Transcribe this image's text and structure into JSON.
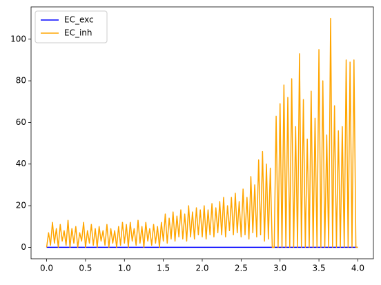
{
  "chart_data": {
    "type": "line",
    "x": [
      0,
      0.025,
      0.05,
      0.075,
      0.1,
      0.125,
      0.15,
      0.175,
      0.2,
      0.225,
      0.25,
      0.275,
      0.3,
      0.325,
      0.35,
      0.375,
      0.4,
      0.425,
      0.45,
      0.475,
      0.5,
      0.525,
      0.55,
      0.575,
      0.6,
      0.625,
      0.65,
      0.675,
      0.7,
      0.725,
      0.75,
      0.775,
      0.8,
      0.825,
      0.85,
      0.875,
      0.9,
      0.925,
      0.95,
      0.975,
      1,
      1.025,
      1.05,
      1.075,
      1.1,
      1.125,
      1.15,
      1.175,
      1.2,
      1.225,
      1.25,
      1.275,
      1.3,
      1.325,
      1.35,
      1.375,
      1.4,
      1.425,
      1.45,
      1.475,
      1.5,
      1.525,
      1.55,
      1.575,
      1.6,
      1.625,
      1.65,
      1.675,
      1.7,
      1.725,
      1.75,
      1.775,
      1.8,
      1.825,
      1.85,
      1.875,
      1.9,
      1.925,
      1.95,
      1.975,
      2,
      2.025,
      2.05,
      2.075,
      2.1,
      2.125,
      2.15,
      2.175,
      2.2,
      2.225,
      2.25,
      2.275,
      2.3,
      2.325,
      2.35,
      2.375,
      2.4,
      2.425,
      2.45,
      2.475,
      2.5,
      2.525,
      2.55,
      2.575,
      2.6,
      2.625,
      2.65,
      2.675,
      2.7,
      2.725,
      2.75,
      2.775,
      2.8,
      2.825,
      2.85,
      2.875,
      2.9,
      2.925,
      2.95,
      2.975,
      3,
      3.025,
      3.05,
      3.075,
      3.1,
      3.125,
      3.15,
      3.175,
      3.2,
      3.225,
      3.25,
      3.275,
      3.3,
      3.325,
      3.35,
      3.375,
      3.4,
      3.425,
      3.45,
      3.475,
      3.5,
      3.525,
      3.55,
      3.575,
      3.6,
      3.625,
      3.65,
      3.675,
      3.7,
      3.725,
      3.75,
      3.775,
      3.8,
      3.825,
      3.85,
      3.875,
      3.9,
      3.925,
      3.95,
      3.975,
      4
    ],
    "series": [
      {
        "name": "EC_exc",
        "color": "#0000ff",
        "values": [
          0,
          0,
          0,
          0,
          0,
          0,
          0,
          0,
          0,
          0,
          0,
          0,
          0,
          0,
          0,
          0,
          0,
          0,
          0,
          0,
          0,
          0,
          0,
          0,
          0,
          0,
          0,
          0,
          0,
          0,
          0,
          0,
          0,
          0,
          0,
          0,
          0,
          0,
          0,
          0,
          0,
          0,
          0,
          0,
          0,
          0,
          0,
          0,
          0,
          0,
          0,
          0,
          0,
          0,
          0,
          0,
          0,
          0,
          0,
          0,
          0,
          0,
          0,
          0,
          0,
          0,
          0,
          0,
          0,
          0,
          0,
          0,
          0,
          0,
          0,
          0,
          0,
          0,
          0,
          0,
          0,
          0,
          0,
          0,
          0,
          0,
          0,
          0,
          0,
          0,
          0,
          0,
          0,
          0,
          0,
          0,
          0,
          0,
          0,
          0,
          0,
          0,
          0,
          0,
          0,
          0,
          0,
          0,
          0,
          0,
          0,
          0,
          0,
          0,
          0,
          0,
          0,
          0,
          0,
          0,
          0,
          0,
          0,
          0,
          0,
          0,
          0,
          0,
          0,
          0,
          0,
          0,
          0,
          0,
          0,
          0,
          0,
          0,
          0,
          0,
          0,
          0,
          0,
          0,
          0,
          0,
          0,
          0,
          0,
          0,
          0,
          0,
          0,
          0,
          0,
          0,
          0,
          0,
          0,
          0,
          0
        ]
      },
      {
        "name": "EC_inh",
        "color": "#ffa500",
        "values": [
          0,
          7,
          1,
          12,
          2,
          9,
          0,
          11,
          3,
          8,
          1,
          13,
          0,
          9,
          2,
          10,
          0,
          7,
          3,
          12,
          0,
          8,
          2,
          11,
          1,
          9,
          0,
          10,
          3,
          8,
          1,
          11,
          0,
          9,
          2,
          8,
          0,
          10,
          1,
          12,
          2,
          11,
          0,
          12,
          3,
          9,
          1,
          13,
          2,
          10,
          0,
          12,
          3,
          9,
          1,
          11,
          2,
          10,
          0,
          12,
          3,
          16,
          2,
          14,
          4,
          17,
          3,
          15,
          5,
          18,
          4,
          16,
          3,
          20,
          5,
          17,
          4,
          19,
          6,
          18,
          5,
          20,
          4,
          18,
          6,
          21,
          5,
          19,
          7,
          22,
          6,
          24,
          5,
          20,
          8,
          24,
          6,
          26,
          7,
          22,
          5,
          28,
          6,
          24,
          4,
          34,
          7,
          30,
          5,
          42,
          6,
          46,
          3,
          40,
          4,
          38,
          0,
          0,
          63,
          0,
          69,
          0,
          78,
          0,
          72,
          0,
          81,
          0,
          58,
          0,
          93,
          0,
          71,
          0,
          52,
          0,
          75,
          0,
          62,
          0,
          95,
          0,
          80,
          0,
          54,
          0,
          110,
          0,
          68,
          0,
          56,
          0,
          58,
          0,
          90,
          0,
          89,
          0,
          90,
          0,
          0
        ]
      }
    ],
    "xlim": [
      -0.2,
      4.2
    ],
    "xticks": [
      {
        "value": 0,
        "label": "0.0"
      },
      0.5,
      {
        "value": 1,
        "label": "1.0"
      },
      1.5,
      {
        "value": 2,
        "label": "2.0"
      },
      2.5,
      {
        "value": 3,
        "label": "3.0"
      },
      3.5,
      {
        "value": 4,
        "label": "4.0"
      }
    ],
    "ylim": [
      -5.5,
      115.5
    ],
    "yticks": [
      0,
      20,
      40,
      60,
      80,
      100
    ],
    "grid": false,
    "legend": "upper left"
  }
}
